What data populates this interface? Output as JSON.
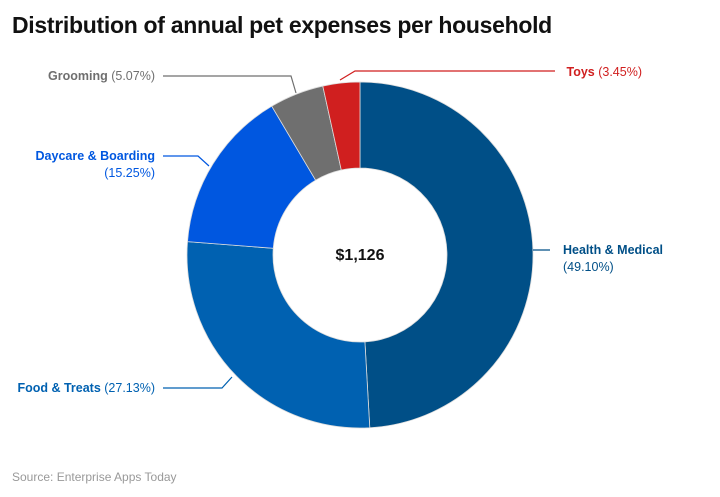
{
  "chart_data": {
    "type": "pie",
    "variant": "donut",
    "title": "Distribution of annual pet expenses per household",
    "center_label": "$1,126",
    "slices": [
      {
        "name": "Health & Medical",
        "value": 49.1,
        "label": "(49.10%)",
        "color": "#004f87"
      },
      {
        "name": "Food & Treats",
        "value": 27.13,
        "label": "(27.13%)",
        "color": "#0061b1"
      },
      {
        "name": "Daycare & Boarding",
        "value": 15.25,
        "label": "(15.25%)",
        "color": "#0057e0"
      },
      {
        "name": "Grooming",
        "value": 5.07,
        "label": "(5.07%)",
        "color": "#6f6f6f"
      },
      {
        "name": "Toys",
        "value": 3.45,
        "label": "(3.45%)",
        "color": "#d01f1f"
      }
    ],
    "source": "Source: Enterprise Apps Today"
  }
}
